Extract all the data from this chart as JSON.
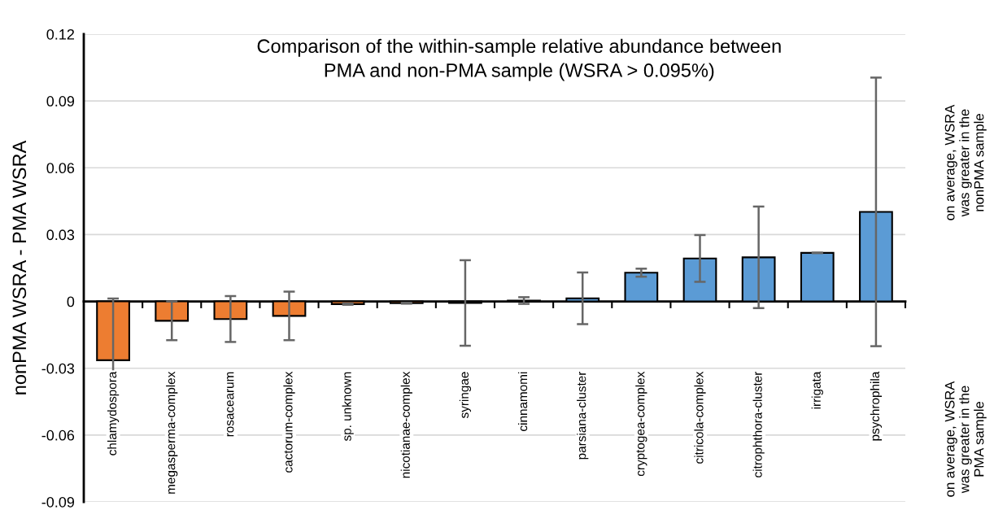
{
  "chart_data": {
    "type": "bar",
    "title": "Comparison of the within-sample relative abundance between\nPMA and non-PMA sample (WSRA > 0.095%)",
    "ylabel": "nonPMA WSRA - PMA WSRA",
    "categories": [
      "chlamydospora",
      "megasperma-complex",
      "rosacearum",
      "cactorum-complex",
      "sp. unknown",
      "nicotianae-complex",
      "syringae",
      "cinnamomi",
      "parsiana-cluster",
      "cryptogea-complex",
      "citricola-complex",
      "citrophthora-cluster",
      "irrigata",
      "psychrophila"
    ],
    "values": [
      -0.0264,
      -0.0087,
      -0.0079,
      -0.0065,
      -0.0012,
      -0.0008,
      -0.0007,
      0.0004,
      0.0014,
      0.0129,
      0.0193,
      0.0198,
      0.0218,
      0.0402
    ],
    "errors": [
      0.0277,
      0.0087,
      0.0103,
      0.0109,
      0.0003,
      0.0002,
      0.0192,
      0.0015,
      0.0116,
      0.0018,
      0.0105,
      0.0228,
      0.0001,
      0.0603
    ],
    "colors": [
      "#ed7d31",
      "#ed7d31",
      "#ed7d31",
      "#ed7d31",
      "#ed7d31",
      "#ed7d31",
      "#ed7d31",
      "#5b9bd5",
      "#5b9bd5",
      "#5b9bd5",
      "#5b9bd5",
      "#5b9bd5",
      "#5b9bd5",
      "#5b9bd5"
    ],
    "ylim": [
      -0.09,
      0.12
    ],
    "yticks": [
      {
        "value": -0.09,
        "label": "-0.09"
      },
      {
        "value": -0.06,
        "label": "-0.06"
      },
      {
        "value": -0.03,
        "label": "-0.03"
      },
      0,
      {
        "value": 0.03,
        "label": "0.03"
      },
      {
        "value": 0.06,
        "label": "0.06"
      },
      {
        "value": 0.09,
        "label": "0.09"
      },
      {
        "value": 0.12,
        "label": "0.12"
      }
    ],
    "grid": "y",
    "annotations": [
      "on average, WSRA\nwas greater in the\nnonPMA sample",
      "on average, WSRA\nwas greater in the\nPMA sample"
    ]
  }
}
